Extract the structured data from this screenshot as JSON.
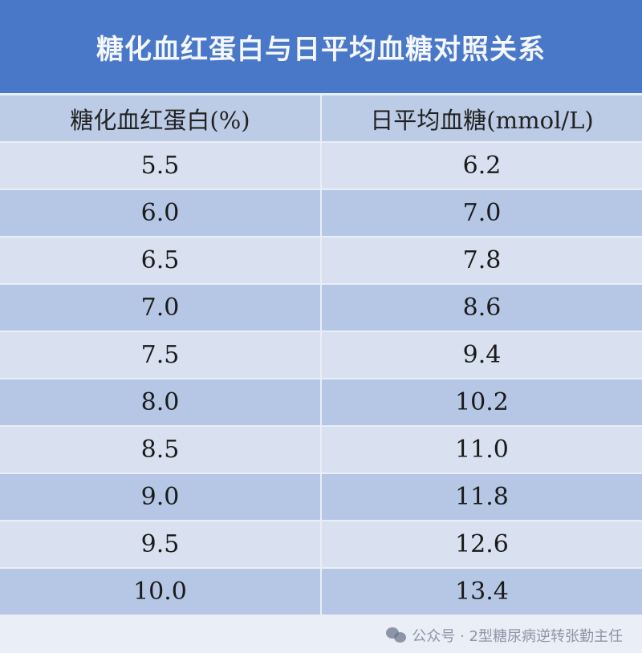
{
  "title": "糖化血红蛋白与日平均血糖对照关系",
  "columns": [
    "糖化血红蛋白(%)",
    "日平均血糖(mmol/L)"
  ],
  "rows": [
    [
      "5.5",
      "6.2"
    ],
    [
      "6.0",
      "7.0"
    ],
    [
      "6.5",
      "7.8"
    ],
    [
      "7.0",
      "8.6"
    ],
    [
      "7.5",
      "9.4"
    ],
    [
      "8.0",
      "10.2"
    ],
    [
      "8.5",
      "11.0"
    ],
    [
      "9.0",
      "11.8"
    ],
    [
      "9.5",
      "12.6"
    ],
    [
      "10.0",
      "13.4"
    ]
  ],
  "watermark": {
    "icon": "wechat-icon",
    "text": "公众号 · 2型糖尿病逆转张勤主任"
  },
  "colors": {
    "title_bg": "#4a78c9",
    "row_light": "#d9e0ef",
    "row_dark": "#b6c7e6"
  }
}
